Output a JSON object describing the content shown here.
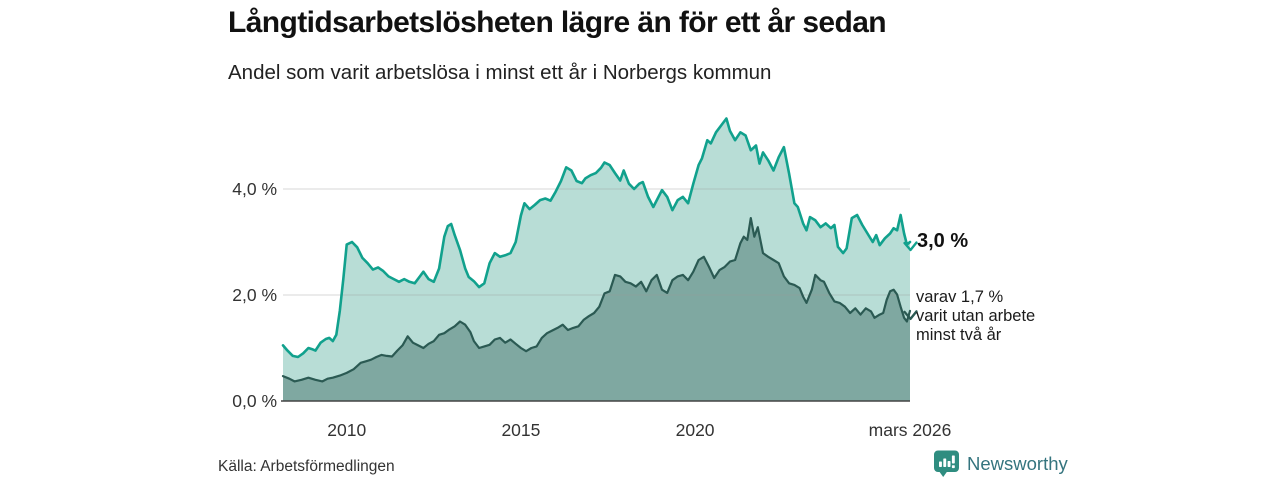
{
  "header": {
    "title": "Långtidsarbetslösheten lägre än för ett år sedan",
    "subtitle": "Andel som varit arbetslösa i minst ett år i Norbergs kommun"
  },
  "annotations": {
    "latest_total": "3,0 %",
    "breakdown": [
      "varav 1,7 %",
      "varit utan arbete",
      "minst två år"
    ]
  },
  "footer": {
    "source": "Källa: Arbetsförmedlingen",
    "brand": "Newsworthy",
    "brand_icon": "newsworthy-speech-bubble-bars-icon"
  },
  "colors": {
    "total_line": "#11a18d",
    "total_fill": "#b8ddd6",
    "twoyear_line": "#2b5a53",
    "twoyear_fill": "#7fa8a1",
    "gridline": "#999999",
    "axis_line": "#444444",
    "brand": "#34747e",
    "brand_icon": "#2f8d80"
  },
  "chart_data": {
    "type": "area",
    "title": "Långtidsarbetslösheten lägre än för ett år sedan",
    "subtitle": "Andel som varit arbetslösa i minst ett år i Norbergs kommun",
    "unit": "%",
    "x_domain": [
      2008.17,
      2026.17
    ],
    "y_domain": [
      0,
      5.6
    ],
    "grid": true,
    "yticks": [
      {
        "value": 4.0,
        "label": "4,0 %"
      },
      {
        "value": 2.0,
        "label": "2,0 %"
      },
      {
        "value": 0.0,
        "label": "0,0 %"
      }
    ],
    "xticks": [
      {
        "value": 2010,
        "label": "2010"
      },
      {
        "value": 2015,
        "label": "2015"
      },
      {
        "value": 2020,
        "label": "2020"
      },
      {
        "value": 2026.17,
        "label": "mars 2026"
      }
    ],
    "end_marker": "down-chevron",
    "series": [
      {
        "name": "Arbetslösa minst ett år",
        "latest_label": "3,0 %",
        "line_color": "#11a18d",
        "fill_color": "#b8ddd6",
        "line_width": 2.6,
        "points": [
          [
            2008.17,
            1.05
          ],
          [
            2008.3,
            0.95
          ],
          [
            2008.45,
            0.85
          ],
          [
            2008.6,
            0.83
          ],
          [
            2008.75,
            0.9
          ],
          [
            2008.9,
            1.0
          ],
          [
            2009.0,
            0.98
          ],
          [
            2009.1,
            0.95
          ],
          [
            2009.25,
            1.1
          ],
          [
            2009.4,
            1.17
          ],
          [
            2009.5,
            1.19
          ],
          [
            2009.6,
            1.13
          ],
          [
            2009.7,
            1.25
          ],
          [
            2009.8,
            1.7
          ],
          [
            2009.9,
            2.3
          ],
          [
            2010.0,
            2.95
          ],
          [
            2010.15,
            3.0
          ],
          [
            2010.3,
            2.9
          ],
          [
            2010.45,
            2.7
          ],
          [
            2010.6,
            2.6
          ],
          [
            2010.75,
            2.48
          ],
          [
            2010.9,
            2.52
          ],
          [
            2011.05,
            2.45
          ],
          [
            2011.2,
            2.35
          ],
          [
            2011.35,
            2.3
          ],
          [
            2011.5,
            2.25
          ],
          [
            2011.65,
            2.3
          ],
          [
            2011.8,
            2.25
          ],
          [
            2011.95,
            2.22
          ],
          [
            2012.1,
            2.35
          ],
          [
            2012.2,
            2.44
          ],
          [
            2012.35,
            2.3
          ],
          [
            2012.5,
            2.25
          ],
          [
            2012.65,
            2.5
          ],
          [
            2012.8,
            3.1
          ],
          [
            2012.9,
            3.3
          ],
          [
            2013.0,
            3.34
          ],
          [
            2013.1,
            3.13
          ],
          [
            2013.25,
            2.85
          ],
          [
            2013.4,
            2.5
          ],
          [
            2013.5,
            2.34
          ],
          [
            2013.65,
            2.26
          ],
          [
            2013.8,
            2.15
          ],
          [
            2013.95,
            2.22
          ],
          [
            2014.1,
            2.6
          ],
          [
            2014.25,
            2.79
          ],
          [
            2014.4,
            2.72
          ],
          [
            2014.55,
            2.75
          ],
          [
            2014.7,
            2.79
          ],
          [
            2014.85,
            3.0
          ],
          [
            2015.0,
            3.5
          ],
          [
            2015.1,
            3.73
          ],
          [
            2015.25,
            3.62
          ],
          [
            2015.4,
            3.7
          ],
          [
            2015.55,
            3.79
          ],
          [
            2015.7,
            3.82
          ],
          [
            2015.85,
            3.78
          ],
          [
            2016.0,
            3.95
          ],
          [
            2016.15,
            4.15
          ],
          [
            2016.3,
            4.41
          ],
          [
            2016.45,
            4.35
          ],
          [
            2016.6,
            4.15
          ],
          [
            2016.75,
            4.11
          ],
          [
            2016.85,
            4.2
          ],
          [
            2017.0,
            4.26
          ],
          [
            2017.15,
            4.3
          ],
          [
            2017.3,
            4.4
          ],
          [
            2017.4,
            4.5
          ],
          [
            2017.55,
            4.45
          ],
          [
            2017.7,
            4.3
          ],
          [
            2017.85,
            4.16
          ],
          [
            2017.95,
            4.35
          ],
          [
            2018.1,
            4.1
          ],
          [
            2018.25,
            4.0
          ],
          [
            2018.4,
            4.1
          ],
          [
            2018.5,
            4.13
          ],
          [
            2018.65,
            3.85
          ],
          [
            2018.8,
            3.66
          ],
          [
            2018.95,
            3.85
          ],
          [
            2019.05,
            3.98
          ],
          [
            2019.2,
            3.85
          ],
          [
            2019.35,
            3.6
          ],
          [
            2019.5,
            3.79
          ],
          [
            2019.65,
            3.85
          ],
          [
            2019.8,
            3.73
          ],
          [
            2019.95,
            4.1
          ],
          [
            2020.1,
            4.45
          ],
          [
            2020.2,
            4.58
          ],
          [
            2020.35,
            4.92
          ],
          [
            2020.45,
            4.86
          ],
          [
            2020.6,
            5.07
          ],
          [
            2020.75,
            5.2
          ],
          [
            2020.9,
            5.33
          ],
          [
            2021.0,
            5.1
          ],
          [
            2021.15,
            4.92
          ],
          [
            2021.3,
            5.07
          ],
          [
            2021.45,
            5.01
          ],
          [
            2021.6,
            4.73
          ],
          [
            2021.75,
            4.82
          ],
          [
            2021.85,
            4.48
          ],
          [
            2021.95,
            4.69
          ],
          [
            2022.1,
            4.54
          ],
          [
            2022.25,
            4.35
          ],
          [
            2022.4,
            4.6
          ],
          [
            2022.55,
            4.79
          ],
          [
            2022.7,
            4.29
          ],
          [
            2022.85,
            3.73
          ],
          [
            2022.95,
            3.66
          ],
          [
            2023.1,
            3.35
          ],
          [
            2023.2,
            3.22
          ],
          [
            2023.3,
            3.47
          ],
          [
            2023.45,
            3.41
          ],
          [
            2023.6,
            3.28
          ],
          [
            2023.75,
            3.35
          ],
          [
            2023.9,
            3.26
          ],
          [
            2024.0,
            3.32
          ],
          [
            2024.1,
            2.91
          ],
          [
            2024.25,
            2.79
          ],
          [
            2024.35,
            2.88
          ],
          [
            2024.5,
            3.45
          ],
          [
            2024.65,
            3.51
          ],
          [
            2024.8,
            3.32
          ],
          [
            2024.95,
            3.16
          ],
          [
            2025.1,
            3.0
          ],
          [
            2025.2,
            3.13
          ],
          [
            2025.3,
            2.94
          ],
          [
            2025.45,
            3.07
          ],
          [
            2025.6,
            3.16
          ],
          [
            2025.7,
            3.26
          ],
          [
            2025.8,
            3.22
          ],
          [
            2025.9,
            3.51
          ],
          [
            2026.0,
            3.16
          ],
          [
            2026.08,
            2.95
          ],
          [
            2026.17,
            3.0
          ]
        ]
      },
      {
        "name": "Arbetslösa minst två år",
        "latest_label": "varav 1,7 % varit utan arbete minst två år",
        "line_color": "#2b5a53",
        "fill_color": "#7fa8a1",
        "line_width": 2.2,
        "points": [
          [
            2008.17,
            0.47
          ],
          [
            2008.35,
            0.42
          ],
          [
            2008.5,
            0.37
          ],
          [
            2008.7,
            0.4
          ],
          [
            2008.9,
            0.44
          ],
          [
            2009.1,
            0.4
          ],
          [
            2009.3,
            0.37
          ],
          [
            2009.45,
            0.42
          ],
          [
            2009.6,
            0.44
          ],
          [
            2009.8,
            0.48
          ],
          [
            2010.0,
            0.53
          ],
          [
            2010.2,
            0.6
          ],
          [
            2010.4,
            0.72
          ],
          [
            2010.55,
            0.75
          ],
          [
            2010.7,
            0.78
          ],
          [
            2010.85,
            0.83
          ],
          [
            2011.0,
            0.87
          ],
          [
            2011.15,
            0.85
          ],
          [
            2011.3,
            0.84
          ],
          [
            2011.45,
            0.95
          ],
          [
            2011.6,
            1.05
          ],
          [
            2011.75,
            1.22
          ],
          [
            2011.9,
            1.1
          ],
          [
            2012.05,
            1.05
          ],
          [
            2012.2,
            1.0
          ],
          [
            2012.35,
            1.08
          ],
          [
            2012.5,
            1.13
          ],
          [
            2012.65,
            1.25
          ],
          [
            2012.8,
            1.28
          ],
          [
            2012.95,
            1.35
          ],
          [
            2013.1,
            1.41
          ],
          [
            2013.25,
            1.5
          ],
          [
            2013.4,
            1.44
          ],
          [
            2013.55,
            1.3
          ],
          [
            2013.65,
            1.13
          ],
          [
            2013.8,
            1.0
          ],
          [
            2013.95,
            1.03
          ],
          [
            2014.1,
            1.06
          ],
          [
            2014.25,
            1.16
          ],
          [
            2014.4,
            1.19
          ],
          [
            2014.55,
            1.1
          ],
          [
            2014.7,
            1.16
          ],
          [
            2014.85,
            1.08
          ],
          [
            2015.0,
            1.0
          ],
          [
            2015.15,
            0.94
          ],
          [
            2015.3,
            1.0
          ],
          [
            2015.45,
            1.03
          ],
          [
            2015.6,
            1.19
          ],
          [
            2015.75,
            1.28
          ],
          [
            2015.9,
            1.33
          ],
          [
            2016.05,
            1.38
          ],
          [
            2016.2,
            1.44
          ],
          [
            2016.35,
            1.34
          ],
          [
            2016.5,
            1.38
          ],
          [
            2016.65,
            1.41
          ],
          [
            2016.8,
            1.53
          ],
          [
            2016.95,
            1.6
          ],
          [
            2017.1,
            1.66
          ],
          [
            2017.25,
            1.78
          ],
          [
            2017.4,
            2.03
          ],
          [
            2017.55,
            2.07
          ],
          [
            2017.7,
            2.38
          ],
          [
            2017.85,
            2.35
          ],
          [
            2018.0,
            2.25
          ],
          [
            2018.15,
            2.22
          ],
          [
            2018.3,
            2.16
          ],
          [
            2018.45,
            2.25
          ],
          [
            2018.6,
            2.07
          ],
          [
            2018.75,
            2.28
          ],
          [
            2018.9,
            2.38
          ],
          [
            2019.05,
            2.1
          ],
          [
            2019.2,
            2.04
          ],
          [
            2019.35,
            2.28
          ],
          [
            2019.5,
            2.35
          ],
          [
            2019.65,
            2.38
          ],
          [
            2019.8,
            2.28
          ],
          [
            2019.95,
            2.44
          ],
          [
            2020.1,
            2.66
          ],
          [
            2020.25,
            2.72
          ],
          [
            2020.4,
            2.53
          ],
          [
            2020.55,
            2.32
          ],
          [
            2020.7,
            2.47
          ],
          [
            2020.85,
            2.53
          ],
          [
            2021.0,
            2.63
          ],
          [
            2021.15,
            2.66
          ],
          [
            2021.3,
            2.98
          ],
          [
            2021.4,
            3.1
          ],
          [
            2021.5,
            3.04
          ],
          [
            2021.6,
            3.45
          ],
          [
            2021.7,
            3.1
          ],
          [
            2021.8,
            3.28
          ],
          [
            2021.95,
            2.79
          ],
          [
            2022.1,
            2.72
          ],
          [
            2022.25,
            2.66
          ],
          [
            2022.4,
            2.6
          ],
          [
            2022.55,
            2.35
          ],
          [
            2022.7,
            2.22
          ],
          [
            2022.85,
            2.19
          ],
          [
            2023.0,
            2.13
          ],
          [
            2023.1,
            1.97
          ],
          [
            2023.2,
            1.85
          ],
          [
            2023.35,
            2.1
          ],
          [
            2023.45,
            2.38
          ],
          [
            2023.6,
            2.28
          ],
          [
            2023.7,
            2.25
          ],
          [
            2023.85,
            2.04
          ],
          [
            2024.0,
            1.88
          ],
          [
            2024.15,
            1.85
          ],
          [
            2024.3,
            1.78
          ],
          [
            2024.45,
            1.66
          ],
          [
            2024.6,
            1.75
          ],
          [
            2024.75,
            1.63
          ],
          [
            2024.9,
            1.75
          ],
          [
            2025.05,
            1.69
          ],
          [
            2025.15,
            1.57
          ],
          [
            2025.3,
            1.63
          ],
          [
            2025.4,
            1.66
          ],
          [
            2025.5,
            1.91
          ],
          [
            2025.6,
            2.07
          ],
          [
            2025.7,
            2.1
          ],
          [
            2025.8,
            2.01
          ],
          [
            2025.9,
            1.78
          ],
          [
            2026.0,
            1.57
          ],
          [
            2026.08,
            1.5
          ],
          [
            2026.17,
            1.7
          ]
        ]
      }
    ]
  }
}
